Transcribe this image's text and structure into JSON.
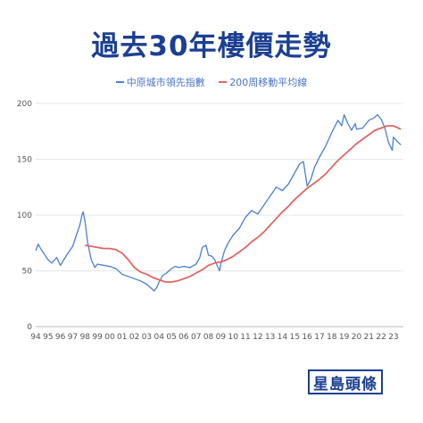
{
  "title": "過去30年樓價走勢",
  "colors": {
    "title": "#1b3f92",
    "cci": "#4a7fd4",
    "ma200": "#e06464",
    "grid": "#e6e6e6"
  },
  "logo": {
    "text": "星島頭條"
  },
  "chart_data": {
    "type": "line",
    "title": "過去30年樓價走勢",
    "legend_position": "top",
    "grid": "horizontal",
    "ylim": [
      0,
      200
    ],
    "yticks": [
      "0",
      "50",
      "100",
      "150",
      "200"
    ],
    "xlim": [
      1994,
      2023.8
    ],
    "xticks": [
      "94",
      "95",
      "96",
      "97",
      "98",
      "99",
      "00",
      "01",
      "02",
      "03",
      "04",
      "05",
      "06",
      "07",
      "08",
      "09",
      "10",
      "11",
      "12",
      "13",
      "14",
      "15",
      "16",
      "17",
      "18",
      "19",
      "20",
      "21",
      "22",
      "23"
    ],
    "series": [
      {
        "name": "中原城市領先指數",
        "color": "#4a7fd4",
        "x": [
          1994.0,
          1994.2,
          1994.4,
          1994.7,
          1995.0,
          1995.3,
          1995.7,
          1996.0,
          1996.5,
          1997.0,
          1997.3,
          1997.6,
          1997.75,
          1997.85,
          1998.0,
          1998.2,
          1998.5,
          1998.8,
          1999.0,
          1999.5,
          2000.0,
          2000.5,
          2001.0,
          2001.5,
          2002.0,
          2002.5,
          2003.0,
          2003.4,
          2003.6,
          2003.8,
          2004.0,
          2004.3,
          2004.6,
          2005.0,
          2005.3,
          2005.6,
          2006.0,
          2006.5,
          2007.0,
          2007.3,
          2007.5,
          2007.8,
          2008.0,
          2008.3,
          2008.5,
          2008.7,
          2008.9,
          2009.0,
          2009.3,
          2009.6,
          2010.0,
          2010.5,
          2011.0,
          2011.5,
          2012.0,
          2012.5,
          2013.0,
          2013.5,
          2014.0,
          2014.5,
          2015.0,
          2015.4,
          2015.7,
          2016.0,
          2016.3,
          2016.6,
          2017.0,
          2017.5,
          2018.0,
          2018.5,
          2018.8,
          2019.0,
          2019.3,
          2019.6,
          2019.9,
          2020.0,
          2020.5,
          2021.0,
          2021.4,
          2021.7,
          2022.0,
          2022.3,
          2022.6,
          2022.9,
          2023.0,
          2023.3,
          2023.6
        ],
        "y": [
          68,
          74,
          70,
          65,
          60,
          57,
          62,
          55,
          64,
          72,
          82,
          92,
          100,
          103,
          94,
          76,
          60,
          53,
          56,
          55,
          54,
          52,
          47,
          45,
          43,
          41,
          38,
          34,
          32,
          35,
          40,
          46,
          48,
          52,
          54,
          53,
          54,
          53,
          56,
          62,
          71,
          73,
          64,
          63,
          60,
          55,
          50,
          56,
          68,
          75,
          82,
          88,
          98,
          104,
          101,
          109,
          117,
          125,
          122,
          128,
          138,
          146,
          148,
          126,
          132,
          143,
          152,
          162,
          174,
          185,
          180,
          190,
          182,
          176,
          182,
          177,
          178,
          185,
          187,
          190,
          186,
          178,
          165,
          158,
          170,
          166,
          163
        ]
      },
      {
        "name": "200周移動平均線",
        "color": "#e06464",
        "x": [
          1998.0,
          1998.5,
          1999.0,
          1999.5,
          2000.0,
          2000.5,
          2001.0,
          2001.5,
          2002.0,
          2002.5,
          2003.0,
          2003.5,
          2004.0,
          2004.5,
          2005.0,
          2005.5,
          2006.0,
          2006.5,
          2007.0,
          2007.5,
          2008.0,
          2008.5,
          2009.0,
          2009.5,
          2010.0,
          2010.5,
          2011.0,
          2011.5,
          2012.0,
          2012.5,
          2013.0,
          2013.5,
          2014.0,
          2014.5,
          2015.0,
          2015.5,
          2016.0,
          2016.5,
          2017.0,
          2017.5,
          2018.0,
          2018.5,
          2019.0,
          2019.5,
          2020.0,
          2020.5,
          2021.0,
          2021.5,
          2022.0,
          2022.5,
          2023.0,
          2023.6
        ],
        "y": [
          73,
          72,
          71,
          70,
          70,
          69,
          66,
          60,
          53,
          49,
          47,
          44,
          42,
          40,
          40,
          41,
          43,
          45,
          48,
          51,
          55,
          57,
          58,
          60,
          63,
          67,
          71,
          76,
          80,
          85,
          91,
          97,
          103,
          108,
          114,
          119,
          124,
          128,
          132,
          137,
          143,
          149,
          154,
          159,
          164,
          168,
          172,
          176,
          178,
          180,
          180,
          177
        ]
      }
    ]
  }
}
